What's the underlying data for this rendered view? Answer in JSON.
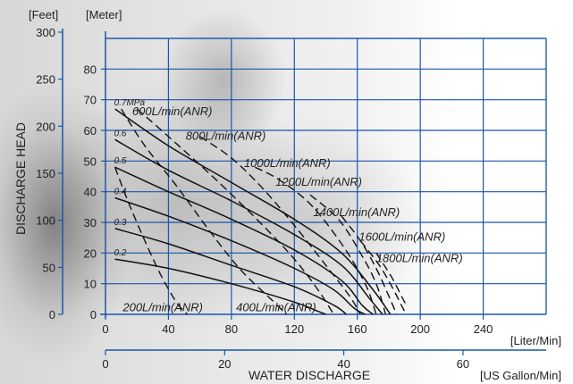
{
  "chart_data": {
    "type": "line",
    "xlabel": "WATER DISCHARGE",
    "ylabel": "DISCHARGE HEAD",
    "x_unit_primary": "[Liter/Min]",
    "x_unit_secondary": "[US Gallon/Min]",
    "y_unit_feet": "[Feet]",
    "y_unit_meter": "[Meter]",
    "xlim": [
      0,
      280
    ],
    "ylim": [
      0,
      90
    ],
    "x_ticks": [
      0,
      40,
      80,
      120,
      160,
      200,
      240
    ],
    "x_ticks_gallon": [
      0,
      20,
      40,
      60
    ],
    "y_ticks_meter": [
      0,
      10,
      20,
      30,
      40,
      50,
      60,
      70,
      80
    ],
    "y_ticks_feet": [
      0,
      50,
      100,
      150,
      200,
      250,
      300
    ],
    "grid": true,
    "pressure_series": [
      {
        "name": "0.7MPa",
        "points": [
          [
            6,
            67
          ],
          [
            40,
            55
          ],
          [
            80,
            43
          ],
          [
            120,
            31
          ],
          [
            150,
            20
          ],
          [
            170,
            8
          ],
          [
            181,
            0
          ]
        ]
      },
      {
        "name": "0.6",
        "points": [
          [
            6,
            57
          ],
          [
            40,
            47
          ],
          [
            80,
            37
          ],
          [
            120,
            26
          ],
          [
            150,
            16
          ],
          [
            168,
            5
          ],
          [
            176,
            0
          ]
        ]
      },
      {
        "name": "0.5",
        "points": [
          [
            6,
            48
          ],
          [
            40,
            40
          ],
          [
            80,
            31
          ],
          [
            120,
            21
          ],
          [
            150,
            11
          ],
          [
            163,
            3
          ],
          [
            170,
            0
          ]
        ]
      },
      {
        "name": "0.4",
        "points": [
          [
            6,
            38
          ],
          [
            40,
            32
          ],
          [
            80,
            24
          ],
          [
            120,
            15
          ],
          [
            145,
            8
          ],
          [
            158,
            2
          ],
          [
            165,
            0
          ]
        ]
      },
      {
        "name": "0.3",
        "points": [
          [
            6,
            28
          ],
          [
            40,
            23
          ],
          [
            80,
            16
          ],
          [
            120,
            9
          ],
          [
            145,
            3
          ],
          [
            153,
            0
          ]
        ]
      },
      {
        "name": "0.2",
        "points": [
          [
            6,
            18
          ],
          [
            40,
            15
          ],
          [
            80,
            10
          ],
          [
            120,
            4
          ],
          [
            135,
            1
          ],
          [
            140,
            0
          ]
        ]
      }
    ],
    "air_consumption_series": [
      {
        "name": "200L/min(ANR)",
        "points": [
          [
            6,
            48
          ],
          [
            15,
            36
          ],
          [
            25,
            24
          ],
          [
            35,
            13
          ],
          [
            45,
            4
          ],
          [
            52,
            0
          ]
        ]
      },
      {
        "name": "400L/min(ANR)",
        "points": [
          [
            10,
            67
          ],
          [
            25,
            55
          ],
          [
            45,
            42
          ],
          [
            65,
            28
          ],
          [
            85,
            15
          ],
          [
            105,
            5
          ],
          [
            115,
            0
          ]
        ]
      },
      {
        "name": "600L/min(ANR)",
        "points": [
          [
            20,
            67
          ],
          [
            40,
            58
          ],
          [
            70,
            44
          ],
          [
            100,
            29
          ],
          [
            120,
            18
          ],
          [
            135,
            8
          ],
          [
            145,
            0
          ]
        ]
      },
      {
        "name": "800L/min(ANR)",
        "points": [
          [
            60,
            58
          ],
          [
            80,
            51
          ],
          [
            100,
            41
          ],
          [
            120,
            29
          ],
          [
            140,
            16
          ],
          [
            155,
            6
          ],
          [
            162,
            0
          ]
        ]
      },
      {
        "name": "1000L/min(ANR)",
        "points": [
          [
            95,
            48
          ],
          [
            110,
            44
          ],
          [
            130,
            36
          ],
          [
            150,
            23
          ],
          [
            165,
            10
          ],
          [
            172,
            0
          ]
        ]
      },
      {
        "name": "1200L/min(ANR)",
        "points": [
          [
            130,
            39
          ],
          [
            148,
            31
          ],
          [
            162,
            20
          ],
          [
            172,
            10
          ],
          [
            178,
            0
          ]
        ]
      },
      {
        "name": "1400L/min(ANR)",
        "points": [
          [
            150,
            32
          ],
          [
            162,
            24
          ],
          [
            172,
            15
          ],
          [
            180,
            6
          ],
          [
            185,
            0
          ]
        ]
      },
      {
        "name": "1600L/min(ANR)",
        "points": [
          [
            162,
            24
          ],
          [
            174,
            16
          ],
          [
            182,
            9
          ],
          [
            188,
            3
          ],
          [
            191,
            0
          ]
        ]
      },
      {
        "name": "1800L/min(ANR)",
        "points": [
          [
            172,
            20
          ],
          [
            182,
            12
          ],
          [
            188,
            6
          ],
          [
            191,
            3
          ]
        ]
      }
    ],
    "air_label_positions": [
      {
        "label": "600L/min(ANR)",
        "x": 17,
        "y": 65
      },
      {
        "label": "800L/min(ANR)",
        "x": 51,
        "y": 57
      },
      {
        "label": "1000L/min(ANR)",
        "x": 88,
        "y": 48
      },
      {
        "label": "1200L/min(ANR)",
        "x": 108,
        "y": 42
      },
      {
        "label": "1400L/min(ANR)",
        "x": 132,
        "y": 32
      },
      {
        "label": "1600L/min(ANR)",
        "x": 161,
        "y": 24
      },
      {
        "label": "1800L/min(ANR)",
        "x": 172,
        "y": 17
      },
      {
        "label": "200L/min(ANR)",
        "x": 11,
        "y": 1
      },
      {
        "label": "400L/min(ANR)",
        "x": 83,
        "y": 1
      }
    ]
  }
}
